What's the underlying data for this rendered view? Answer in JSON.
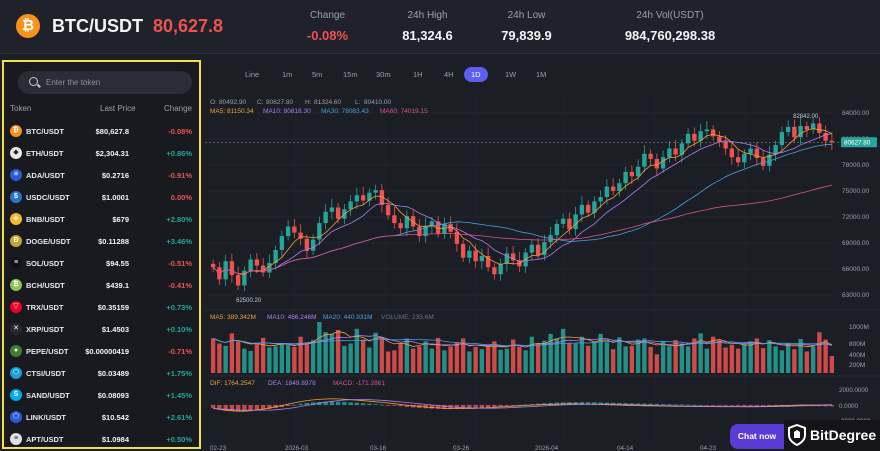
{
  "header": {
    "coin_glyph": "₿",
    "pair": "BTC/USDT",
    "price": "80,627.8",
    "stats": [
      {
        "label": "Change",
        "value": "-0.08%",
        "tone": "neg"
      },
      {
        "label": "24h High",
        "value": "81,324.6",
        "tone": ""
      },
      {
        "label": "24h Low",
        "value": "79,839.9",
        "tone": ""
      },
      {
        "label": "24h Vol(USDT)",
        "value": "984,760,298.38",
        "tone": ""
      }
    ]
  },
  "sidebar": {
    "search_placeholder": "Enter the token",
    "columns": {
      "token": "Token",
      "last_price": "Last Price",
      "change": "Change"
    },
    "tokens": [
      {
        "symbol": "BTC/USDT",
        "price": "$80,627.8",
        "change": "-0.08%",
        "color": "#f7931a",
        "glyph": "₿"
      },
      {
        "symbol": "ETH/USDT",
        "price": "$2,304.31",
        "change": "+0.86%",
        "color": "#e8e8ea",
        "glyph": "◆"
      },
      {
        "symbol": "ADA/USDT",
        "price": "$0.2716",
        "change": "-0.91%",
        "color": "#2a5ada",
        "glyph": "✳"
      },
      {
        "symbol": "USDC/USDT",
        "price": "$1.0001",
        "change": "0.00%",
        "color": "#2775ca",
        "glyph": "$"
      },
      {
        "symbol": "BNB/USDT",
        "price": "$679",
        "change": "+2.80%",
        "color": "#f3ba2f",
        "glyph": "◈"
      },
      {
        "symbol": "DOGE/USDT",
        "price": "$0.11288",
        "change": "+3.46%",
        "color": "#c2a633",
        "glyph": "Ð"
      },
      {
        "symbol": "SOL/USDT",
        "price": "$94.55",
        "change": "-0.51%",
        "color": "#111318",
        "glyph": "≡"
      },
      {
        "symbol": "BCH/USDT",
        "price": "$439.1",
        "change": "-0.41%",
        "color": "#8dc351",
        "glyph": "₿"
      },
      {
        "symbol": "TRX/USDT",
        "price": "$0.35159",
        "change": "+0.73%",
        "color": "#ef0027",
        "glyph": "▽"
      },
      {
        "symbol": "XRP/USDT",
        "price": "$1.4503",
        "change": "+0.10%",
        "color": "#23292f",
        "glyph": "✕"
      },
      {
        "symbol": "PEPE/USDT",
        "price": "$0.00000419",
        "change": "-0.71%",
        "color": "#3d8130",
        "glyph": "●"
      },
      {
        "symbol": "CTSI/USDT",
        "price": "$0.03489",
        "change": "+1.75%",
        "color": "#1a9cd8",
        "glyph": "⬡"
      },
      {
        "symbol": "SAND/USDT",
        "price": "$0.08093",
        "change": "+1.45%",
        "color": "#00adef",
        "glyph": "S"
      },
      {
        "symbol": "LINK/USDT",
        "price": "$10.542",
        "change": "+2.61%",
        "color": "#2a5ada",
        "glyph": "⬡"
      },
      {
        "symbol": "APT/USDT",
        "price": "$1.0984",
        "change": "+0.50%",
        "color": "#dfe1e6",
        "glyph": "≡"
      }
    ]
  },
  "timeframes": [
    "Line",
    "1m",
    "5m",
    "15m",
    "30m",
    "1H",
    "4H",
    "1D",
    "1W",
    "1M"
  ],
  "active_timeframe": "1D",
  "ohlc": {
    "o_label": "O:",
    "o": "80492.90",
    "c_label": "C:",
    "c": "80627.80",
    "h_label": "H:",
    "h": "81324.60",
    "l_label": "L:",
    "l": "80410.00"
  },
  "ma_legend": [
    {
      "text": "MA5: 81150.34",
      "color": "#f0a040"
    },
    {
      "text": "MA10: 80818.30",
      "color": "#b07ff0"
    },
    {
      "text": "MA30: 78083.43",
      "color": "#4aa0e0"
    },
    {
      "text": "MA60: 74019.15",
      "color": "#e0508a"
    }
  ],
  "vol_legend": [
    {
      "text": "MA5: 389.342M",
      "color": "#f0a040"
    },
    {
      "text": "MA10: 466.246M",
      "color": "#b07ff0"
    },
    {
      "text": "MA20: 440.931M",
      "color": "#4aa0e0"
    },
    {
      "text": "VOLUME: 235.6M",
      "color": "#6b7280"
    }
  ],
  "macd_legend": [
    {
      "text": "DIF: 1764.2547",
      "color": "#f0a040"
    },
    {
      "text": "DEA: 1849.8978",
      "color": "#b07ff0"
    },
    {
      "text": "MACD: -171.2861",
      "color": "#e0508a"
    }
  ],
  "chart_data": {
    "type": "candlestick",
    "price_axis": [
      "84000.00",
      "81000.00",
      "78000.00",
      "75000.00",
      "72000.00",
      "69000.00",
      "66000.00",
      "63000.00"
    ],
    "price_ylim": [
      61500,
      85500
    ],
    "current_price_label": "80627.80",
    "high_marker": "82842.00",
    "low_marker": "62500.20",
    "volume_axis": [
      "1000M",
      "800M",
      "400M",
      "200M"
    ],
    "macd_axis": [
      "2000.0000",
      "0.0000",
      "-2000.0000"
    ],
    "x_labels": [
      "02-23",
      "2026-03",
      "03-16",
      "03-26",
      "2026-04",
      "04-14",
      "04-23"
    ],
    "closes": [
      66200,
      64800,
      66900,
      65300,
      64100,
      65800,
      67100,
      66400,
      65600,
      66700,
      68200,
      69800,
      70900,
      70200,
      69500,
      68100,
      69400,
      71300,
      72600,
      73100,
      71800,
      72900,
      73800,
      74500,
      73900,
      74800,
      75100,
      73400,
      72200,
      71300,
      70700,
      72100,
      70900,
      69800,
      71000,
      71500,
      70100,
      71200,
      70300,
      68900,
      67300,
      68100,
      66900,
      67500,
      66200,
      65400,
      66600,
      67800,
      67000,
      66300,
      67900,
      68800,
      67600,
      69100,
      69900,
      71200,
      71800,
      70600,
      72300,
      73400,
      72500,
      73800,
      74300,
      75500,
      75000,
      75900,
      77200,
      76700,
      77800,
      79300,
      78700,
      77600,
      78900,
      79900,
      79200,
      80500,
      81600,
      80800,
      81900,
      82100,
      81300,
      80700,
      79900,
      78900,
      78300,
      79300,
      79900,
      78800,
      77900,
      79200,
      80300,
      81800,
      82400,
      81200,
      82500,
      82100,
      82800,
      81700,
      80800,
      80628
    ],
    "volumes": [
      610,
      520,
      480,
      700,
      560,
      430,
      390,
      510,
      620,
      450,
      470,
      520,
      500,
      460,
      640,
      540,
      580,
      900,
      720,
      690,
      760,
      480,
      520,
      780,
      590,
      450,
      710,
      630,
      380,
      400,
      520,
      610,
      430,
      470,
      560,
      430,
      620,
      400,
      470,
      540,
      610,
      380,
      460,
      420,
      480,
      560,
      410,
      430,
      590,
      460,
      400,
      640,
      520,
      570,
      690,
      610,
      780,
      530,
      520,
      640,
      480,
      560,
      690,
      540,
      420,
      630,
      470,
      480,
      590,
      610,
      460,
      330,
      560,
      470,
      580,
      520,
      470,
      610,
      700,
      430,
      640,
      580,
      450,
      500,
      430,
      520,
      560,
      610,
      440,
      580,
      470,
      400,
      520,
      420,
      600,
      380,
      470,
      720,
      590,
      300
    ],
    "macd": [
      -380,
      -520,
      -640,
      -720,
      -780,
      -800,
      -760,
      -690,
      -600,
      -500,
      -380,
      -250,
      -120,
      20,
      160,
      260,
      330,
      380,
      420,
      440,
      420,
      380,
      330,
      280,
      220,
      160,
      100,
      40,
      -20,
      -90,
      -160,
      -230,
      -300,
      -360,
      -410,
      -450,
      -480,
      -500,
      -510,
      -500,
      -480,
      -450,
      -410,
      -360,
      -300,
      -240,
      -180,
      -120,
      -60,
      0,
      60,
      120,
      170,
      220,
      260,
      300,
      330,
      350,
      360,
      360,
      350,
      340,
      320,
      300,
      280,
      260,
      240,
      220,
      200,
      180,
      160,
      140,
      120,
      100,
      80,
      60,
      40,
      20,
      0,
      -20,
      -40,
      -60,
      -80,
      -100,
      -120,
      -140,
      -160,
      -170,
      -170,
      -160,
      -150,
      -140,
      -130,
      -120,
      -110,
      -130,
      -150,
      -160,
      -170,
      -171
    ]
  },
  "chat": {
    "label": "Chat now"
  },
  "brand": {
    "name": "BitDegree"
  }
}
